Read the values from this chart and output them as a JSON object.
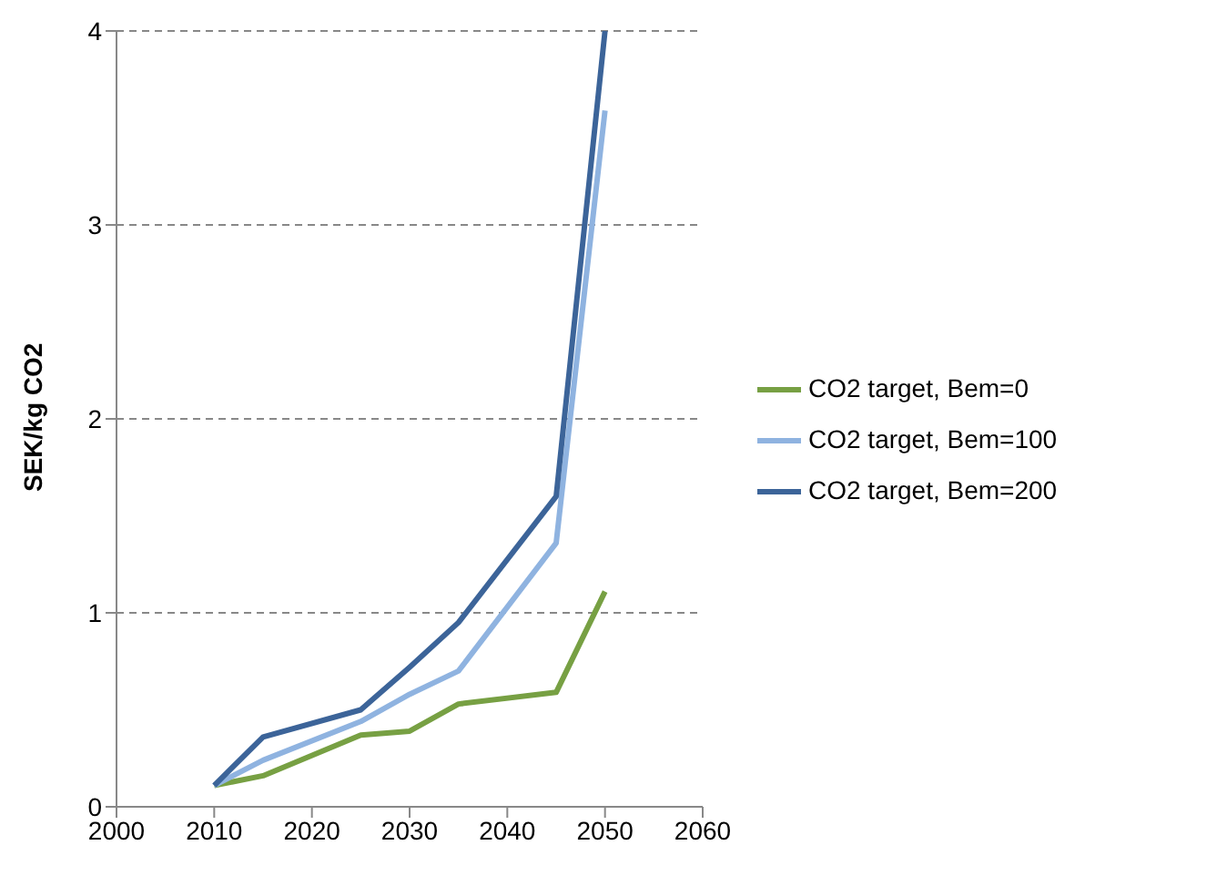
{
  "chart_data": {
    "type": "line",
    "ylabel": "SEK/kg CO2",
    "x": [
      2010,
      2015,
      2025,
      2030,
      2035,
      2045,
      2050
    ],
    "series": [
      {
        "name": "CO2 target, Bem=0",
        "color": "#77a043",
        "values": [
          0.11,
          0.16,
          0.37,
          0.39,
          0.53,
          0.59,
          1.11
        ]
      },
      {
        "name": "CO2 target, Bem=100",
        "color": "#8fb3e0",
        "values": [
          0.11,
          0.24,
          0.44,
          0.58,
          0.7,
          1.36,
          3.59
        ]
      },
      {
        "name": "CO2 target, Bem=200",
        "color": "#3c6499",
        "values": [
          0.11,
          0.36,
          0.5,
          0.72,
          0.95,
          1.6,
          4.0
        ]
      }
    ],
    "xlim": [
      2000,
      2060
    ],
    "xticks": [
      2000,
      2010,
      2020,
      2030,
      2040,
      2050,
      2060
    ],
    "ylim": [
      0,
      4
    ],
    "yticks": [
      0,
      1,
      2,
      3,
      4
    ],
    "grid": "y",
    "legend": "right",
    "marker": "none",
    "line_style": "solid"
  }
}
